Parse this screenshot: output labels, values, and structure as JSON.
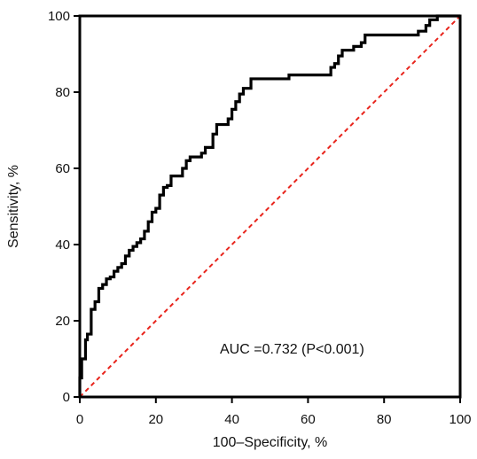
{
  "chart_data": {
    "type": "line",
    "title": "",
    "xlabel": "100–Specificity, %",
    "ylabel": "Sensitivity, %",
    "xlim": [
      0,
      100
    ],
    "ylim": [
      0,
      100
    ],
    "xticks": [
      "0",
      "20",
      "40",
      "60",
      "80",
      "100"
    ],
    "yticks": [
      "0",
      "20",
      "40",
      "60",
      "80",
      "100"
    ],
    "grid": false,
    "legend": "none",
    "annotation": "AUC =0.732 (P<0.001)",
    "series": [
      {
        "style": "solid",
        "color": "#000000",
        "points": [
          [
            0,
            0
          ],
          [
            0,
            5
          ],
          [
            0.5,
            5
          ],
          [
            0.5,
            10
          ],
          [
            1.5,
            10
          ],
          [
            1.5,
            15
          ],
          [
            2,
            15
          ],
          [
            2,
            16.5
          ],
          [
            3,
            16.5
          ],
          [
            3,
            23
          ],
          [
            4,
            23
          ],
          [
            4,
            25
          ],
          [
            5,
            25
          ],
          [
            5,
            28.5
          ],
          [
            6,
            28.5
          ],
          [
            6,
            29.5
          ],
          [
            7,
            29.5
          ],
          [
            7,
            31
          ],
          [
            8,
            31
          ],
          [
            8,
            31.5
          ],
          [
            9,
            31.5
          ],
          [
            9,
            33
          ],
          [
            10,
            33
          ],
          [
            10,
            34
          ],
          [
            11,
            34
          ],
          [
            11,
            35
          ],
          [
            12,
            35
          ],
          [
            12,
            37
          ],
          [
            13,
            37
          ],
          [
            13,
            38.5
          ],
          [
            14,
            38.5
          ],
          [
            14,
            39.5
          ],
          [
            15,
            39.5
          ],
          [
            15,
            40.5
          ],
          [
            16,
            40.5
          ],
          [
            16,
            41.5
          ],
          [
            17,
            41.5
          ],
          [
            17,
            43.5
          ],
          [
            18,
            43.5
          ],
          [
            18,
            46
          ],
          [
            19,
            46
          ],
          [
            19,
            48.5
          ],
          [
            20,
            48.5
          ],
          [
            20,
            49.5
          ],
          [
            21,
            49.5
          ],
          [
            21,
            53
          ],
          [
            22,
            53
          ],
          [
            22,
            55
          ],
          [
            23,
            55
          ],
          [
            23,
            55.5
          ],
          [
            24,
            55.5
          ],
          [
            24,
            58
          ],
          [
            27,
            58
          ],
          [
            27,
            60
          ],
          [
            28,
            60
          ],
          [
            28,
            62
          ],
          [
            29,
            62
          ],
          [
            29,
            63
          ],
          [
            32,
            63
          ],
          [
            32,
            64
          ],
          [
            33,
            64
          ],
          [
            33,
            65.5
          ],
          [
            35,
            65.5
          ],
          [
            35,
            69
          ],
          [
            36,
            69
          ],
          [
            36,
            71.5
          ],
          [
            39,
            71.5
          ],
          [
            39,
            73
          ],
          [
            40,
            73
          ],
          [
            40,
            75.5
          ],
          [
            41,
            75.5
          ],
          [
            41,
            77.5
          ],
          [
            42,
            77.5
          ],
          [
            42,
            79.5
          ],
          [
            43,
            79.5
          ],
          [
            43,
            81
          ],
          [
            45,
            81
          ],
          [
            45,
            83.5
          ],
          [
            55,
            83.5
          ],
          [
            55,
            84.5
          ],
          [
            66,
            84.5
          ],
          [
            66,
            86.5
          ],
          [
            67,
            86.5
          ],
          [
            67,
            87.5
          ],
          [
            68,
            87.5
          ],
          [
            68,
            89.5
          ],
          [
            69,
            89.5
          ],
          [
            69,
            91
          ],
          [
            72,
            91
          ],
          [
            72,
            92
          ],
          [
            74,
            92
          ],
          [
            74,
            93
          ],
          [
            75,
            93
          ],
          [
            75,
            95
          ],
          [
            89,
            95
          ],
          [
            89,
            96
          ],
          [
            91,
            96
          ],
          [
            91,
            97.5
          ],
          [
            92,
            97.5
          ],
          [
            92,
            99
          ],
          [
            94,
            99
          ],
          [
            94,
            100
          ],
          [
            100,
            100
          ]
        ]
      },
      {
        "style": "dashed",
        "color": "#e8241c",
        "points": [
          [
            0,
            0
          ],
          [
            100,
            100
          ]
        ]
      }
    ]
  }
}
